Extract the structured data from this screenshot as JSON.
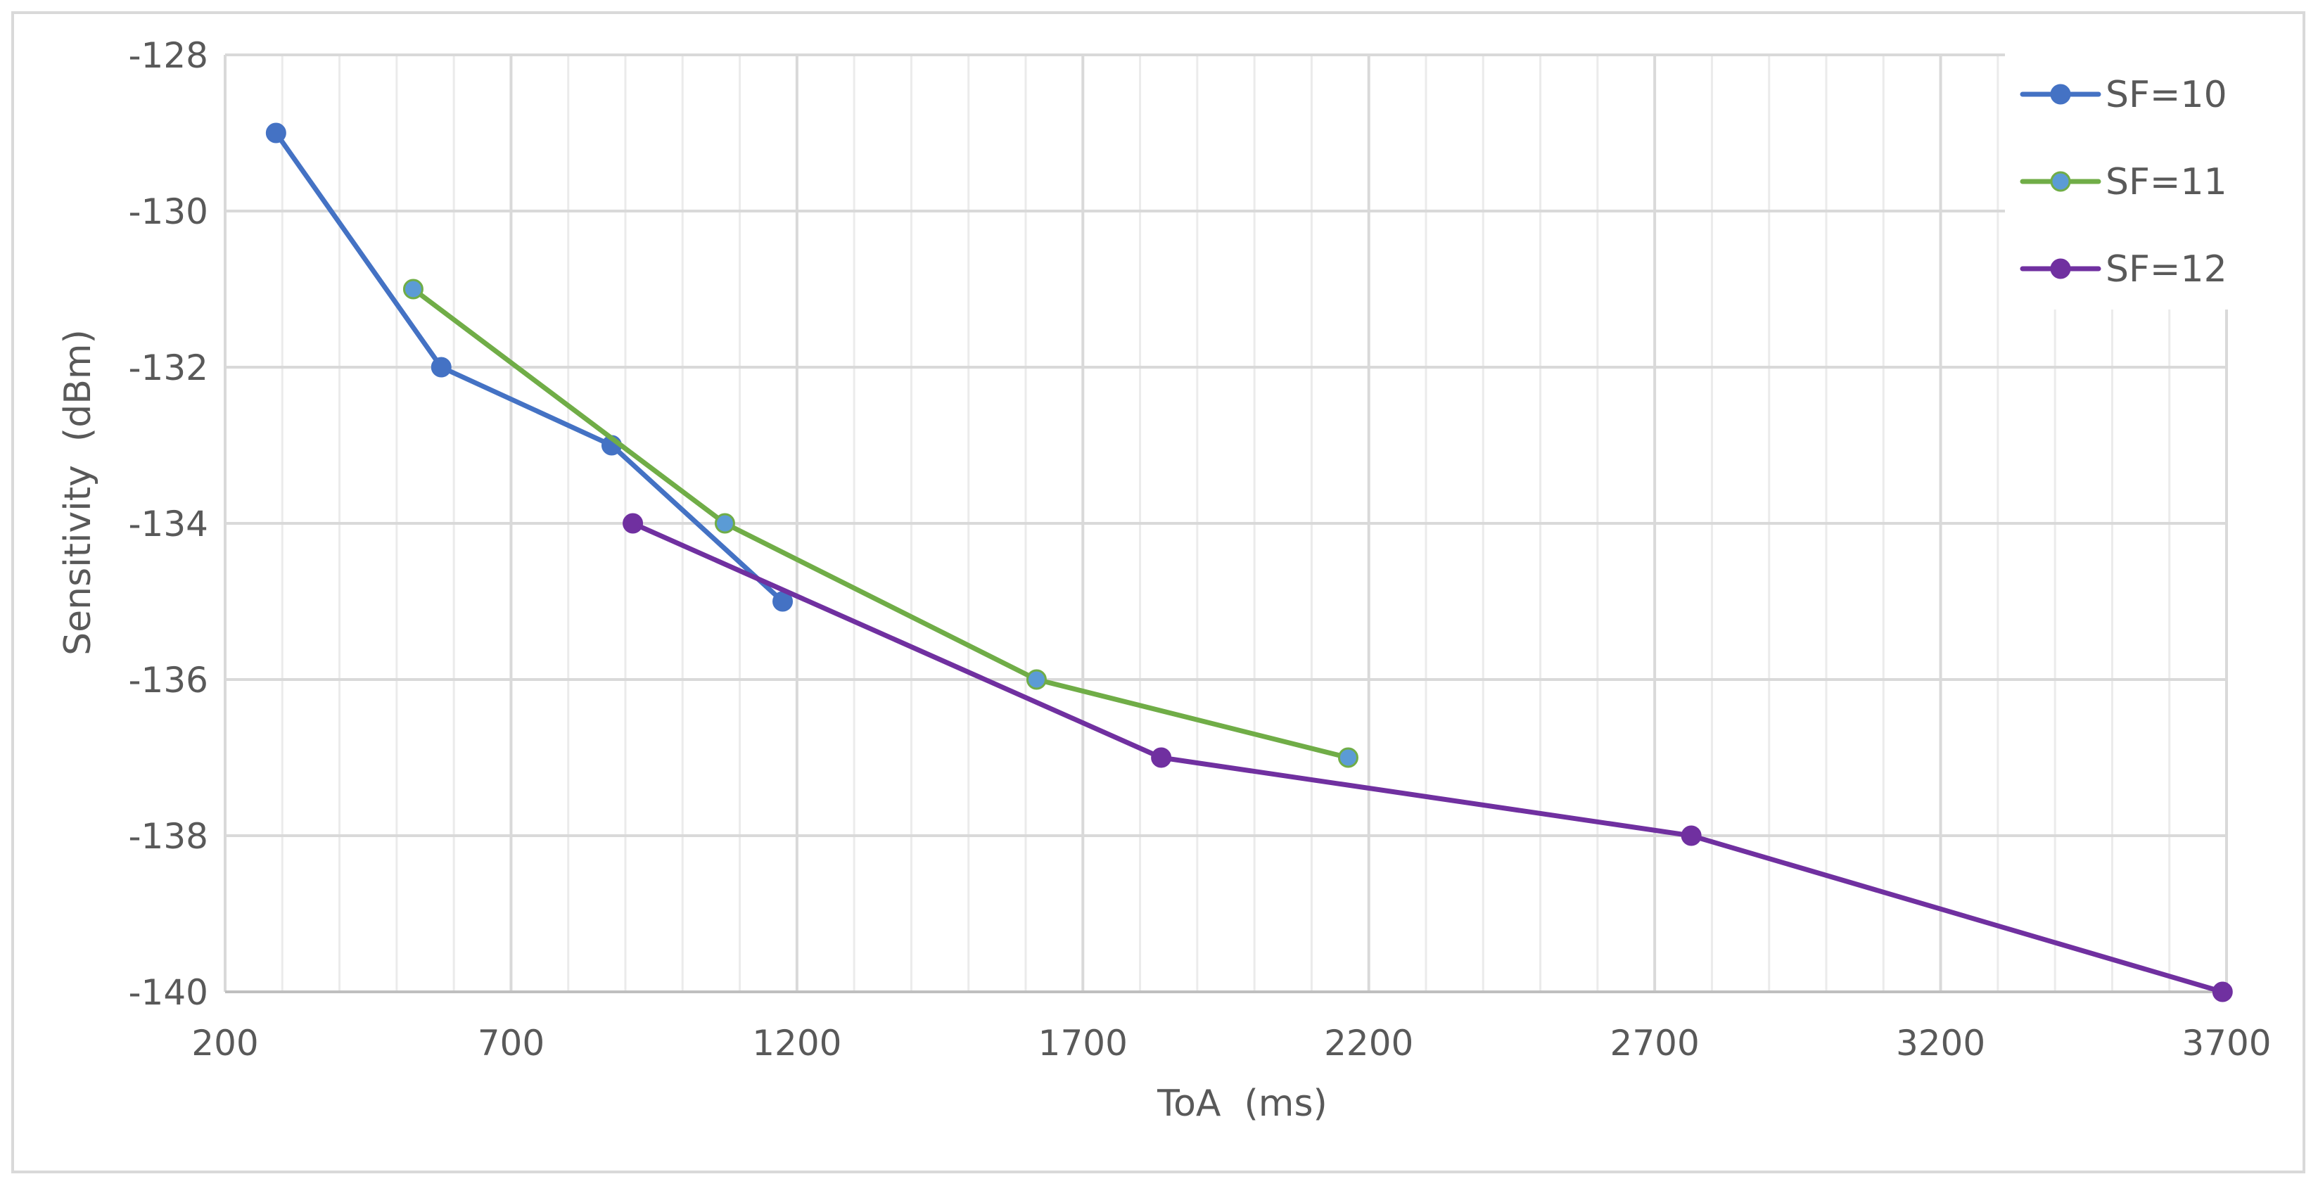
{
  "chart_data": {
    "type": "line",
    "xlabel": "ToA  (ms)",
    "ylabel": "Sensitivity  (dBm)",
    "xlim": [
      200,
      3700
    ],
    "ylim": [
      -140,
      -128
    ],
    "x_ticks": [
      "200",
      "700",
      "1200",
      "1700",
      "2200",
      "2700",
      "3200",
      "3700"
    ],
    "y_ticks": [
      "-128",
      "-130",
      "-132",
      "-134",
      "-136",
      "-138",
      "-140"
    ],
    "x_major_step": 500,
    "x_minor_step": 100,
    "y_major_step": 2,
    "y_minor_step": 0,
    "grid": true,
    "legend_position": "top-right",
    "series": [
      {
        "name": "SF=10",
        "color": "#4472c4",
        "marker_fill": "#4472c4",
        "x": [
          289,
          578,
          876,
          1175
        ],
        "y": [
          -129,
          -132,
          -133,
          -135
        ]
      },
      {
        "name": "SF=11",
        "color": "#70ad47",
        "marker_fill": "#5b9bd5",
        "x": [
          529,
          1074,
          1619,
          2164
        ],
        "y": [
          -131,
          -134,
          -136,
          -137
        ]
      },
      {
        "name": "SF=12",
        "color": "#7030a0",
        "marker_fill": "#7030a0",
        "x": [
          913,
          1837,
          2764,
          3693
        ],
        "y": [
          -134,
          -137,
          -138,
          -140
        ]
      }
    ]
  }
}
